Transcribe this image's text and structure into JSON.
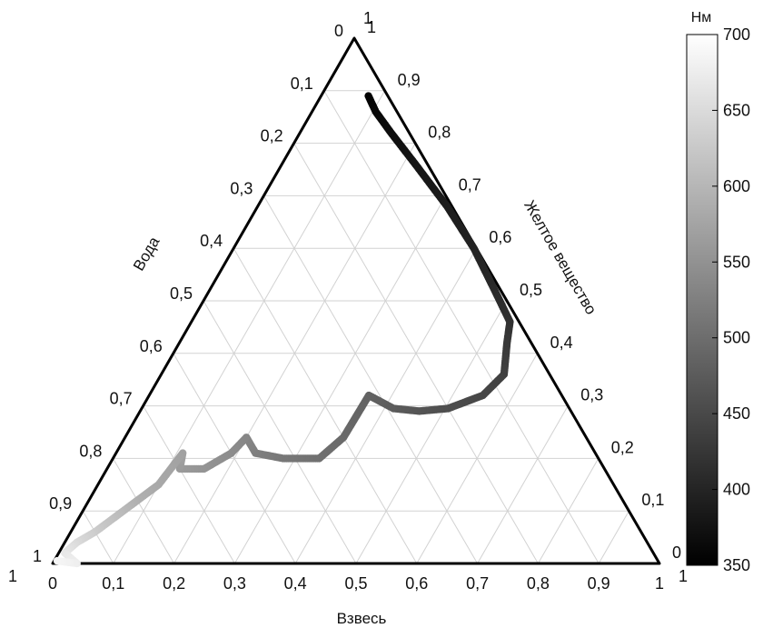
{
  "chart_data": {
    "type": "ternary-scatter",
    "axes": {
      "bottom": {
        "label": "Взвесь",
        "ticks": [
          "0",
          "0,1",
          "0,2",
          "0,3",
          "0,4",
          "0,5",
          "0,6",
          "0,7",
          "0,8",
          "0,9",
          "1"
        ]
      },
      "left": {
        "label": "Вода",
        "ticks": [
          "1",
          "0,9",
          "0,8",
          "0,7",
          "0,6",
          "0,5",
          "0,4",
          "0,3",
          "0,2",
          "0,1",
          "0"
        ]
      },
      "right": {
        "label": "Желтое вещество",
        "ticks": [
          "0",
          "0,1",
          "0,2",
          "0,3",
          "0,4",
          "0,5",
          "0,6",
          "0,7",
          "0,8",
          "0,9",
          "1"
        ]
      }
    },
    "grid": true,
    "colorbar": {
      "title": "Нм",
      "range": [
        350,
        700
      ],
      "ticks": [
        "350",
        "400",
        "450",
        "500",
        "550",
        "600",
        "650",
        "700"
      ],
      "colormap": "gray",
      "position": "right"
    },
    "series": [
      {
        "color_by": "wavelength_nm",
        "points": [
          {
            "water": 0.032,
            "yellow": 0.89,
            "susp": 0.078,
            "nm": 350
          },
          {
            "water": 0.035,
            "yellow": 0.86,
            "susp": 0.105,
            "nm": 360
          },
          {
            "water": 0.03,
            "yellow": 0.82,
            "susp": 0.15,
            "nm": 370
          },
          {
            "water": 0.02,
            "yellow": 0.76,
            "susp": 0.22,
            "nm": 380
          },
          {
            "water": 0.008,
            "yellow": 0.68,
            "susp": 0.312,
            "nm": 390
          },
          {
            "water": 0.004,
            "yellow": 0.6,
            "susp": 0.396,
            "nm": 400
          },
          {
            "water": 0.01,
            "yellow": 0.52,
            "susp": 0.47,
            "nm": 410
          },
          {
            "water": 0.015,
            "yellow": 0.46,
            "susp": 0.525,
            "nm": 420
          },
          {
            "water": 0.04,
            "yellow": 0.42,
            "susp": 0.54,
            "nm": 430
          },
          {
            "water": 0.075,
            "yellow": 0.36,
            "susp": 0.565,
            "nm": 440
          },
          {
            "water": 0.13,
            "yellow": 0.32,
            "susp": 0.55,
            "nm": 450
          },
          {
            "water": 0.2,
            "yellow": 0.295,
            "susp": 0.505,
            "nm": 460
          },
          {
            "water": 0.25,
            "yellow": 0.29,
            "susp": 0.46,
            "nm": 470
          },
          {
            "water": 0.29,
            "yellow": 0.295,
            "susp": 0.415,
            "nm": 480
          },
          {
            "water": 0.318,
            "yellow": 0.32,
            "susp": 0.362,
            "nm": 490
          },
          {
            "water": 0.4,
            "yellow": 0.24,
            "susp": 0.36,
            "nm": 500
          },
          {
            "water": 0.46,
            "yellow": 0.2,
            "susp": 0.34,
            "nm": 510
          },
          {
            "water": 0.52,
            "yellow": 0.2,
            "susp": 0.28,
            "nm": 520
          },
          {
            "water": 0.56,
            "yellow": 0.21,
            "susp": 0.23,
            "nm": 530
          },
          {
            "water": 0.56,
            "yellow": 0.24,
            "susp": 0.2,
            "nm": 540
          },
          {
            "water": 0.6,
            "yellow": 0.21,
            "susp": 0.19,
            "nm": 550
          },
          {
            "water": 0.66,
            "yellow": 0.18,
            "susp": 0.16,
            "nm": 560
          },
          {
            "water": 0.7,
            "yellow": 0.18,
            "susp": 0.12,
            "nm": 570
          },
          {
            "water": 0.68,
            "yellow": 0.21,
            "susp": 0.11,
            "nm": 580
          },
          {
            "water": 0.75,
            "yellow": 0.15,
            "susp": 0.1,
            "nm": 590
          },
          {
            "water": 0.8,
            "yellow": 0.12,
            "susp": 0.08,
            "nm": 600
          },
          {
            "water": 0.85,
            "yellow": 0.09,
            "susp": 0.06,
            "nm": 620
          },
          {
            "water": 0.9,
            "yellow": 0.06,
            "susp": 0.04,
            "nm": 640
          },
          {
            "water": 0.94,
            "yellow": 0.04,
            "susp": 0.02,
            "nm": 660
          },
          {
            "water": 0.97,
            "yellow": 0.02,
            "susp": 0.01,
            "nm": 680
          },
          {
            "water": 0.96,
            "yellow": 0.0,
            "susp": 0.04,
            "nm": 690
          },
          {
            "water": 0.99,
            "yellow": 0.005,
            "susp": 0.005,
            "nm": 700
          }
        ]
      }
    ]
  }
}
